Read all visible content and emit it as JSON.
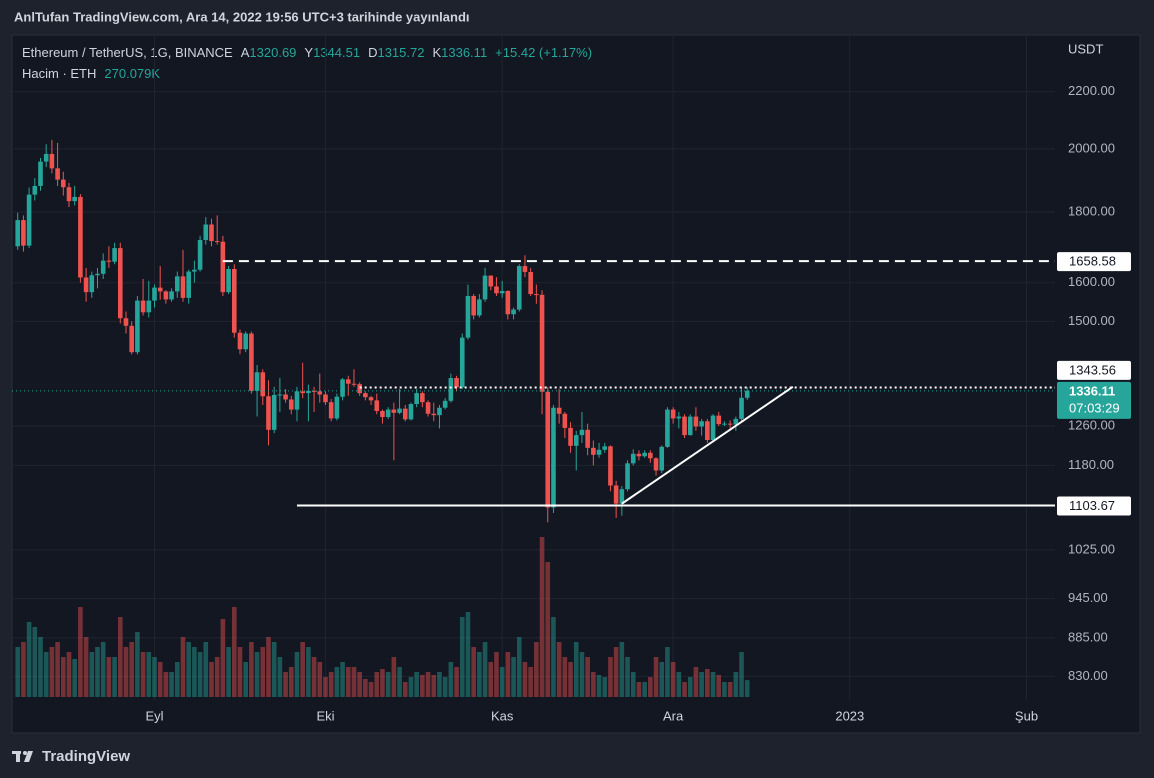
{
  "published": "AnlTufan TradingView.com, Ara 14, 2022 19:56 UTC+3 tarihinde yayınlandı",
  "footer": "TradingView",
  "chart_data": {
    "type": "candlestick",
    "title": "Ethereum / TetherUS, 1G, BINANCE",
    "ohlc_labels": [
      "A",
      "Y",
      "D",
      "K"
    ],
    "change": "+15.42 (+1.17%)",
    "currency": "USDT",
    "countdown": "07:03:29",
    "up_color": "#26a69a",
    "down_color": "#ef5350",
    "log_scale": true,
    "grid": true,
    "ylim": [
      798,
      2418
    ],
    "yticks": [
      {
        "value": 2200,
        "label": "2200.00"
      },
      {
        "value": 2000,
        "label": "2000.00"
      },
      {
        "value": 1800,
        "label": "1800.00"
      },
      {
        "value": 1600,
        "label": "1600.00"
      },
      {
        "value": 1500,
        "label": "1500.00"
      },
      {
        "value": 1260,
        "label": "1260.00"
      },
      {
        "value": 1180,
        "label": "1180.00"
      },
      {
        "value": 1025,
        "label": "1025.00"
      },
      {
        "value": 945,
        "label": "945.00"
      },
      {
        "value": 885,
        "label": "885.00"
      },
      {
        "value": 830,
        "label": "830.00"
      }
    ],
    "xlim": [
      -1,
      182
    ],
    "xticks": [
      {
        "value": 24,
        "label": "Eyl"
      },
      {
        "value": 54,
        "label": "Eki"
      },
      {
        "value": 85,
        "label": "Kas"
      },
      {
        "value": 115,
        "label": "Ara"
      },
      {
        "value": 146,
        "label": "2023"
      },
      {
        "value": 177,
        "label": "Şub"
      }
    ],
    "open": [
      1700,
      1776,
      1702,
      1853,
      1880,
      1958,
      1983,
      1936,
      1900,
      1876,
      1833,
      1846,
      1614,
      1575,
      1620,
      1624,
      1660,
      1657,
      1695,
      1508,
      1489,
      1425,
      1553,
      1523,
      1553,
      1587,
      1577,
      1556,
      1577,
      1617,
      1560,
      1630,
      1635,
      1718,
      1763,
      1715,
      1713,
      1575,
      1637,
      1472,
      1432,
      1470,
      1336,
      1378,
      1324,
      1252,
      1327,
      1328,
      1317,
      1295,
      1335,
      1331,
      1336,
      1335,
      1328,
      1311,
      1276,
      1323,
      1362,
      1352,
      1351,
      1331,
      1322,
      1315,
      1292,
      1279,
      1295,
      1288,
      1297,
      1274,
      1307,
      1331,
      1311,
      1286,
      1283,
      1299,
      1314,
      1365,
      1344,
      1460,
      1565,
      1515,
      1556,
      1619,
      1590,
      1572,
      1578,
      1518,
      1530,
      1645,
      1629,
      1570,
      1568,
      1334,
      1100,
      1299,
      1286,
      1256,
      1219,
      1241,
      1252,
      1215,
      1201,
      1211,
      1218,
      1141,
      1107,
      1134,
      1184,
      1203,
      1198,
      1205,
      1194,
      1170,
      1217,
      1295,
      1276,
      1280,
      1241,
      1280,
      1259,
      1270,
      1231,
      1282,
      1264,
      1265,
      1263,
      1275,
      1320.69
    ],
    "high": [
      1798,
      1790,
      1875,
      1905,
      1970,
      2015,
      2030,
      2020,
      1925,
      1890,
      1880,
      1855,
      1640,
      1630,
      1640,
      1680,
      1700,
      1710,
      1710,
      1525,
      1500,
      1565,
      1610,
      1605,
      1595,
      1645,
      1580,
      1585,
      1630,
      1690,
      1635,
      1660,
      1730,
      1785,
      1780,
      1790,
      1730,
      1645,
      1650,
      1480,
      1475,
      1475,
      1395,
      1385,
      1360,
      1345,
      1365,
      1340,
      1325,
      1345,
      1400,
      1350,
      1345,
      1375,
      1335,
      1318,
      1330,
      1365,
      1370,
      1385,
      1355,
      1335,
      1325,
      1330,
      1295,
      1300,
      1310,
      1340,
      1305,
      1310,
      1340,
      1335,
      1315,
      1310,
      1305,
      1320,
      1375,
      1370,
      1470,
      1595,
      1570,
      1570,
      1640,
      1620,
      1615,
      1605,
      1580,
      1535,
      1650,
      1675,
      1640,
      1595,
      1580,
      1345,
      1305,
      1340,
      1290,
      1268,
      1250,
      1290,
      1265,
      1230,
      1225,
      1225,
      1220,
      1150,
      1140,
      1190,
      1212,
      1210,
      1210,
      1210,
      1196,
      1220,
      1300,
      1300,
      1290,
      1285,
      1285,
      1300,
      1275,
      1275,
      1285,
      1290,
      1270,
      1272,
      1280,
      1345,
      1344.51
    ],
    "low": [
      1690,
      1685,
      1695,
      1835,
      1865,
      1940,
      1920,
      1880,
      1850,
      1815,
      1820,
      1600,
      1550,
      1560,
      1585,
      1610,
      1640,
      1650,
      1495,
      1470,
      1420,
      1420,
      1515,
      1510,
      1535,
      1555,
      1545,
      1550,
      1560,
      1550,
      1545,
      1600,
      1630,
      1705,
      1700,
      1705,
      1565,
      1570,
      1460,
      1420,
      1425,
      1330,
      1280,
      1305,
      1220,
      1245,
      1290,
      1310,
      1285,
      1270,
      1320,
      1270,
      1290,
      1310,
      1305,
      1270,
      1272,
      1315,
      1325,
      1345,
      1325,
      1315,
      1305,
      1285,
      1265,
      1275,
      1190,
      1285,
      1270,
      1272,
      1300,
      1300,
      1280,
      1270,
      1255,
      1295,
      1310,
      1335,
      1340,
      1455,
      1505,
      1510,
      1550,
      1580,
      1565,
      1560,
      1505,
      1505,
      1525,
      1615,
      1565,
      1545,
      1285,
      1073,
      1090,
      1265,
      1235,
      1205,
      1170,
      1225,
      1200,
      1180,
      1195,
      1205,
      1130,
      1081,
      1085,
      1130,
      1180,
      1190,
      1195,
      1185,
      1160,
      1165,
      1215,
      1265,
      1255,
      1235,
      1240,
      1250,
      1240,
      1225,
      1230,
      1260,
      1260,
      1255,
      1250,
      1270,
      1315.72
    ],
    "close": [
      1776,
      1702,
      1853,
      1880,
      1958,
      1983,
      1936,
      1900,
      1876,
      1833,
      1846,
      1614,
      1575,
      1620,
      1624,
      1660,
      1657,
      1695,
      1508,
      1489,
      1425,
      1553,
      1523,
      1553,
      1587,
      1577,
      1556,
      1577,
      1617,
      1560,
      1630,
      1635,
      1718,
      1763,
      1715,
      1713,
      1575,
      1637,
      1472,
      1432,
      1470,
      1336,
      1378,
      1324,
      1252,
      1327,
      1328,
      1317,
      1295,
      1335,
      1331,
      1336,
      1335,
      1328,
      1311,
      1276,
      1323,
      1362,
      1352,
      1351,
      1331,
      1322,
      1315,
      1292,
      1279,
      1295,
      1288,
      1297,
      1274,
      1307,
      1331,
      1311,
      1286,
      1283,
      1299,
      1314,
      1365,
      1344,
      1460,
      1565,
      1515,
      1556,
      1619,
      1590,
      1572,
      1578,
      1518,
      1530,
      1645,
      1629,
      1570,
      1568,
      1334,
      1100,
      1299,
      1286,
      1256,
      1219,
      1241,
      1252,
      1215,
      1201,
      1211,
      1218,
      1141,
      1107,
      1134,
      1184,
      1203,
      1198,
      1205,
      1194,
      1170,
      1217,
      1295,
      1276,
      1280,
      1241,
      1280,
      1259,
      1270,
      1231,
      1282,
      1264,
      1265,
      1263,
      1275,
      1320.69,
      1336.11
    ],
    "volume": {
      "name": "Hacim · ETH",
      "last_label": "270.079K",
      "values": [
        800,
        880,
        1200,
        1120,
        960,
        720,
        800,
        880,
        640,
        720,
        608,
        1440,
        960,
        720,
        800,
        880,
        640,
        640,
        1280,
        800,
        880,
        1040,
        720,
        720,
        640,
        560,
        400,
        400,
        560,
        960,
        880,
        800,
        720,
        880,
        560,
        640,
        1248,
        800,
        1440,
        800,
        560,
        880,
        720,
        800,
        960,
        880,
        640,
        400,
        480,
        720,
        880,
        800,
        640,
        560,
        320,
        400,
        480,
        560,
        480,
        480,
        400,
        288,
        240,
        400,
        448,
        400,
        640,
        480,
        240,
        320,
        400,
        352,
        400,
        352,
        400,
        320,
        560,
        480,
        1280,
        1360,
        800,
        720,
        880,
        560,
        720,
        480,
        720,
        640,
        960,
        560,
        480,
        880,
        2560,
        2160,
        1280,
        880,
        640,
        560,
        880,
        720,
        640,
        400,
        352,
        320,
        640,
        800,
        880,
        640,
        400,
        240,
        240,
        320,
        640,
        560,
        800,
        560,
        400,
        240,
        320,
        480,
        400,
        448,
        400,
        352,
        240,
        240,
        400,
        720,
        270.079
      ]
    },
    "hlines": [
      {
        "value": 1658.58,
        "style": "dashed",
        "from": 36
      },
      {
        "value": 1343.56,
        "style": "dotted",
        "from": 60
      },
      {
        "value": 1103.67,
        "style": "solid",
        "from": 49
      }
    ],
    "trendline": {
      "x": [
        106,
        136
      ],
      "y": [
        1107,
        1345
      ]
    }
  }
}
